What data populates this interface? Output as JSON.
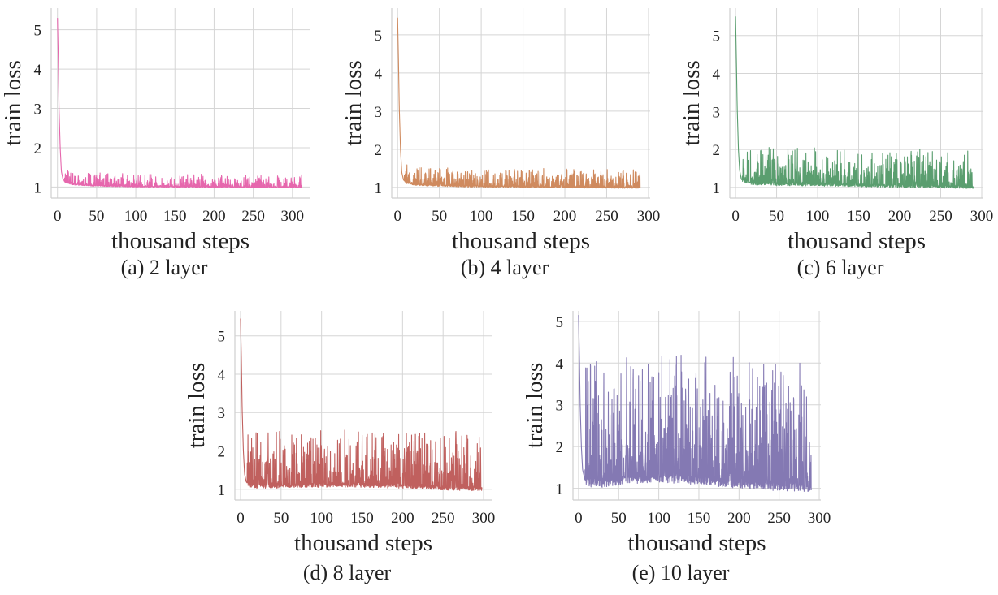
{
  "chart_data": [
    {
      "type": "line",
      "caption": "(a) 2 layer",
      "xlabel": "thousand steps",
      "ylabel": "train loss",
      "xlim": [
        -8,
        322
      ],
      "ylim": [
        0.72,
        5.55
      ],
      "xticks": [
        0,
        50,
        100,
        150,
        200,
        250,
        300
      ],
      "yticks": [
        1,
        2,
        3,
        4,
        5
      ],
      "grid": true,
      "color": "#e667ad",
      "series": [
        {
          "x_end": 312,
          "y_start": 5.3,
          "y_final": 0.99,
          "noise": 0.04,
          "keypoints": [
            [
              0,
              5.3
            ],
            [
              1,
              4.3
            ],
            [
              2,
              3.0
            ],
            [
              3.5,
              2.0
            ],
            [
              5,
              1.4
            ],
            [
              7,
              1.2
            ],
            [
              10,
              1.12
            ],
            [
              20,
              1.06
            ],
            [
              50,
              1.03
            ],
            [
              100,
              1.01
            ],
            [
              200,
              1.0
            ],
            [
              312,
              0.99
            ]
          ]
        }
      ]
    },
    {
      "type": "line",
      "caption": "(b) 4 layer",
      "xlabel": "thousand steps",
      "ylabel": "train loss",
      "xlim": [
        -7,
        302
      ],
      "ylim": [
        0.72,
        5.7
      ],
      "xticks": [
        0,
        50,
        100,
        150,
        200,
        250,
        300
      ],
      "yticks": [
        1,
        2,
        3,
        4,
        5
      ],
      "grid": true,
      "color": "#cf8a5e",
      "series": [
        {
          "x_end": 290,
          "y_start": 5.45,
          "y_final": 0.99,
          "noise": 0.06,
          "keypoints": [
            [
              0,
              5.45
            ],
            [
              1,
              4.4
            ],
            [
              2,
              3.1
            ],
            [
              3.5,
              2.0
            ],
            [
              5,
              1.4
            ],
            [
              7,
              1.2
            ],
            [
              10,
              1.12
            ],
            [
              20,
              1.07
            ],
            [
              50,
              1.04
            ],
            [
              100,
              1.02
            ],
            [
              200,
              1.0
            ],
            [
              290,
              0.99
            ]
          ]
        }
      ]
    },
    {
      "type": "line",
      "caption": "(c) 6 layer",
      "xlabel": "thousand steps",
      "ylabel": "train loss",
      "xlim": [
        -7,
        302
      ],
      "ylim": [
        0.72,
        5.72
      ],
      "xticks": [
        0,
        50,
        100,
        150,
        200,
        250,
        300
      ],
      "yticks": [
        1,
        2,
        3,
        4,
        5
      ],
      "grid": true,
      "color": "#5a9e6f",
      "series": [
        {
          "x_end": 290,
          "y_start": 5.5,
          "y_final": 1.0,
          "noise": 0.12,
          "keypoints": [
            [
              0,
              5.5
            ],
            [
              1,
              4.4
            ],
            [
              2,
              3.1
            ],
            [
              3.5,
              2.0
            ],
            [
              5,
              1.45
            ],
            [
              7,
              1.22
            ],
            [
              10,
              1.15
            ],
            [
              20,
              1.1
            ],
            [
              50,
              1.08
            ],
            [
              100,
              1.07
            ],
            [
              150,
              1.05
            ],
            [
              200,
              1.03
            ],
            [
              290,
              1.0
            ]
          ]
        }
      ]
    },
    {
      "type": "line",
      "caption": "(d) 8 layer",
      "xlabel": "thousand steps",
      "ylabel": "train loss",
      "xlim": [
        -7,
        310
      ],
      "ylim": [
        0.72,
        5.65
      ],
      "xticks": [
        0,
        50,
        100,
        150,
        200,
        250,
        300
      ],
      "yticks": [
        1,
        2,
        3,
        4,
        5
      ],
      "grid": true,
      "color": "#c0605e",
      "series": [
        {
          "x_end": 298,
          "y_start": 5.45,
          "y_final": 1.0,
          "noise": 0.18,
          "keypoints": [
            [
              0,
              5.45
            ],
            [
              1,
              4.4
            ],
            [
              2,
              3.1
            ],
            [
              3.5,
              2.0
            ],
            [
              5,
              1.4
            ],
            [
              7,
              1.2
            ],
            [
              10,
              1.1
            ],
            [
              20,
              1.07
            ],
            [
              50,
              1.08
            ],
            [
              100,
              1.1
            ],
            [
              150,
              1.1
            ],
            [
              200,
              1.07
            ],
            [
              250,
              1.03
            ],
            [
              298,
              1.0
            ]
          ]
        }
      ]
    },
    {
      "type": "line",
      "caption": "(e) 10 layer",
      "xlabel": "thousand steps",
      "ylabel": "train loss",
      "xlim": [
        -7,
        302
      ],
      "ylim": [
        0.72,
        5.25
      ],
      "xticks": [
        0,
        50,
        100,
        150,
        200,
        250,
        300
      ],
      "yticks": [
        1,
        2,
        3,
        4,
        5
      ],
      "grid": true,
      "color": "#8479b3",
      "series": [
        {
          "x_end": 290,
          "y_start": 5.15,
          "y_final": 1.0,
          "noise": 0.38,
          "keypoints": [
            [
              0,
              5.15
            ],
            [
              1,
              4.2
            ],
            [
              2,
              3.0
            ],
            [
              3.5,
              2.0
            ],
            [
              5,
              1.45
            ],
            [
              8,
              1.2
            ],
            [
              15,
              1.12
            ],
            [
              30,
              1.12
            ],
            [
              60,
              1.2
            ],
            [
              100,
              1.25
            ],
            [
              150,
              1.18
            ],
            [
              200,
              1.1
            ],
            [
              250,
              1.04
            ],
            [
              290,
              1.0
            ]
          ]
        }
      ]
    }
  ]
}
